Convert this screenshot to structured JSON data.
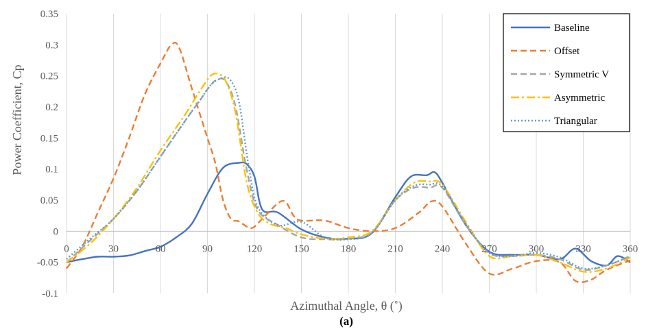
{
  "chart_data": {
    "type": "line",
    "xlabel": "Azimuthal Angle, θ (˚)",
    "ylabel": "Power Coefficient, Cp",
    "xlim": [
      0,
      360
    ],
    "ylim": [
      -0.1,
      0.35
    ],
    "xticks": [
      0,
      30,
      60,
      90,
      120,
      150,
      180,
      210,
      240,
      270,
      300,
      330,
      360
    ],
    "yticks": [
      -0.1,
      -0.05,
      0,
      0.05,
      0.1,
      0.15,
      0.2,
      0.25,
      0.3,
      0.35
    ],
    "xtick_labels": [
      "0",
      "30",
      "60",
      "90",
      "120",
      "150",
      "180",
      "210",
      "240",
      "270",
      "300",
      "330",
      "360"
    ],
    "ytick_labels": [
      "-0.1",
      "-0.05",
      "0",
      "0.05",
      "0.1",
      "0.15",
      "0.2",
      "0.25",
      "0.3",
      "0.35"
    ],
    "grid": "vertical",
    "legend_position": "top-right",
    "caption": "(a)",
    "series": [
      {
        "name": "Baseline",
        "color": "#4472C4",
        "dash": "solid",
        "x": [
          0,
          10,
          20,
          30,
          40,
          50,
          60,
          70,
          80,
          90,
          100,
          110,
          115,
          120,
          125,
          135,
          150,
          165,
          180,
          195,
          210,
          220,
          230,
          235,
          240,
          255,
          270,
          285,
          300,
          315,
          325,
          335,
          345,
          352,
          360
        ],
        "y": [
          -0.05,
          -0.045,
          -0.041,
          -0.041,
          -0.039,
          -0.032,
          -0.025,
          -0.01,
          0.012,
          0.06,
          0.102,
          0.11,
          0.108,
          0.088,
          0.035,
          0.03,
          0.003,
          -0.01,
          -0.012,
          -0.003,
          0.055,
          0.088,
          0.09,
          0.095,
          0.078,
          0.01,
          -0.033,
          -0.038,
          -0.038,
          -0.045,
          -0.028,
          -0.048,
          -0.055,
          -0.04,
          -0.05
        ]
      },
      {
        "name": "Offset",
        "color": "#ED7D31",
        "dash": "dashed",
        "x": [
          0,
          10,
          20,
          30,
          40,
          50,
          60,
          67,
          72,
          80,
          90,
          95,
          100,
          105,
          110,
          118,
          125,
          135,
          140,
          145,
          150,
          165,
          180,
          195,
          210,
          225,
          233,
          240,
          255,
          270,
          285,
          300,
          315,
          325,
          335,
          345,
          360
        ],
        "y": [
          -0.06,
          -0.025,
          0.03,
          0.085,
          0.15,
          0.22,
          0.27,
          0.3,
          0.295,
          0.23,
          0.15,
          0.11,
          0.05,
          0.02,
          0.016,
          0.005,
          0.02,
          0.045,
          0.047,
          0.025,
          0.017,
          0.017,
          0.005,
          0.0,
          0.005,
          0.03,
          0.048,
          0.04,
          -0.02,
          -0.068,
          -0.06,
          -0.048,
          -0.05,
          -0.08,
          -0.078,
          -0.062,
          -0.047
        ]
      },
      {
        "name": "Symmetric V",
        "color": "#A5A5A5",
        "dash": "dashed",
        "x": [
          0,
          15,
          30,
          45,
          60,
          75,
          85,
          92,
          97,
          102,
          108,
          115,
          122,
          135,
          150,
          165,
          180,
          195,
          210,
          222,
          232,
          240,
          255,
          270,
          285,
          300,
          315,
          330,
          345,
          360
        ],
        "y": [
          -0.05,
          -0.015,
          0.02,
          0.065,
          0.12,
          0.175,
          0.21,
          0.235,
          0.245,
          0.24,
          0.2,
          0.1,
          0.035,
          0.01,
          -0.01,
          -0.013,
          -0.012,
          -0.002,
          0.05,
          0.07,
          0.07,
          0.07,
          0.01,
          -0.035,
          -0.04,
          -0.038,
          -0.045,
          -0.062,
          -0.055,
          -0.04
        ]
      },
      {
        "name": "Asymmetric",
        "color": "#FFC000",
        "dash": "dashdot",
        "x": [
          0,
          15,
          30,
          45,
          60,
          75,
          85,
          92,
          97,
          102,
          108,
          115,
          122,
          130,
          140,
          150,
          165,
          180,
          195,
          210,
          222,
          232,
          240,
          255,
          270,
          285,
          300,
          315,
          330,
          345,
          360
        ],
        "y": [
          -0.05,
          -0.02,
          0.02,
          0.07,
          0.13,
          0.185,
          0.225,
          0.25,
          0.253,
          0.24,
          0.19,
          0.08,
          0.03,
          0.012,
          0.005,
          -0.005,
          -0.012,
          -0.01,
          0.0,
          0.05,
          0.078,
          0.08,
          0.075,
          0.015,
          -0.04,
          -0.04,
          -0.038,
          -0.05,
          -0.065,
          -0.06,
          -0.042
        ]
      },
      {
        "name": "Triangular",
        "color": "#5B9BD5",
        "dash": "dotted",
        "x": [
          0,
          15,
          30,
          45,
          60,
          75,
          85,
          92,
          98,
          104,
          110,
          116,
          122,
          135,
          150,
          165,
          180,
          195,
          210,
          222,
          232,
          240,
          255,
          270,
          285,
          300,
          315,
          330,
          345,
          360
        ],
        "y": [
          -0.045,
          -0.012,
          0.02,
          0.065,
          0.12,
          0.175,
          0.21,
          0.235,
          0.245,
          0.245,
          0.21,
          0.11,
          0.04,
          0.01,
          0.015,
          -0.01,
          -0.013,
          -0.003,
          0.05,
          0.073,
          0.075,
          0.072,
          0.012,
          -0.035,
          -0.04,
          -0.035,
          -0.042,
          -0.06,
          -0.055,
          -0.04
        ]
      }
    ]
  }
}
